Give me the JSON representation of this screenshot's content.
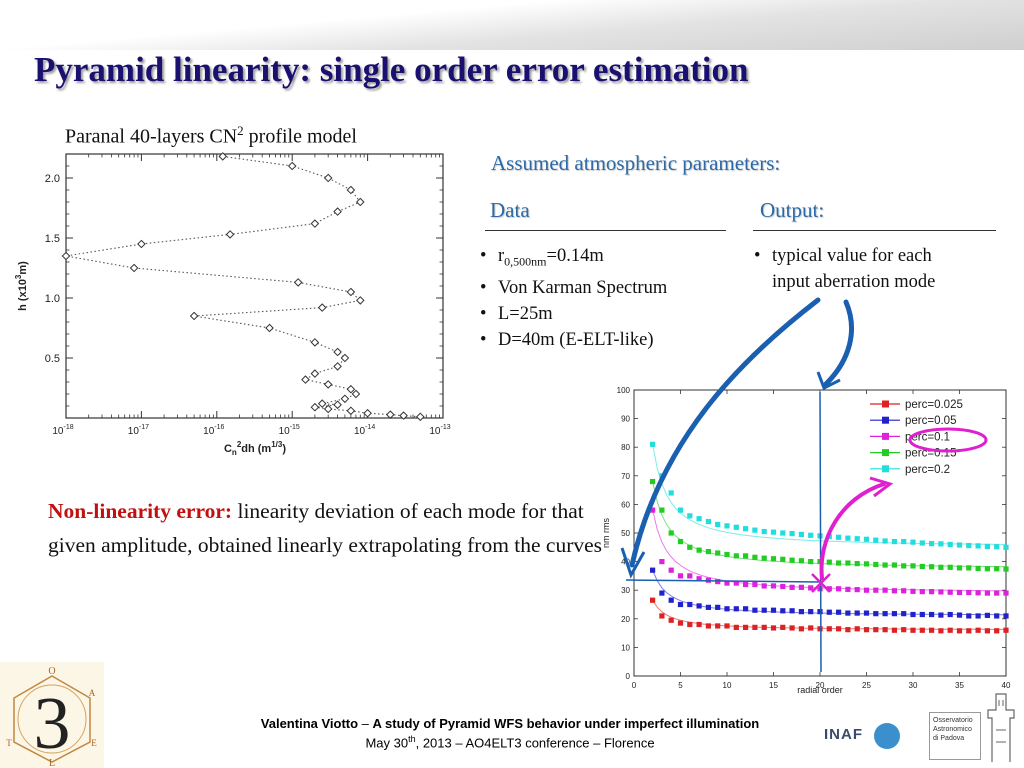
{
  "slide": {
    "title": "Pyramid linearity: single order error estimation",
    "caption_main": "Paranal 40-layers CN",
    "caption_sup": "2",
    "caption_tail": " profile model"
  },
  "atmos": {
    "heading": "Assumed atmospheric parameters:",
    "data_heading": "Data",
    "output_heading": "Output:",
    "r0_prefix": "r",
    "r0_sub": "0,500nm",
    "r0_value": "=0.14m",
    "data_items": [
      "Von Karman Spectrum",
      "L=25m",
      "D=40m (E-ELT-like)"
    ],
    "output_line1": "typical value for each",
    "output_line2": "input aberration mode"
  },
  "nonlinearity": {
    "lead": "Non-linearity error:",
    "text": " linearity deviation of each mode for that given amplitude, obtained linearly extrapolating from the curves"
  },
  "footer": {
    "author": "Valentina Viotto",
    "dash": " – ",
    "talk_title": "A study of Pyramid WFS behavior under imperfect illumination",
    "date_pre": "May 30",
    "date_sup": "th",
    "date_post": ", 2013 – AO4ELT3 conference – Florence"
  },
  "logos": {
    "inaf": "INAF",
    "oapd_lines": [
      "Osservatorio",
      "Astronomico",
      "di Padova"
    ],
    "three": "3",
    "letters": [
      "O",
      "A",
      "E",
      "L",
      "T"
    ]
  },
  "colors": {
    "title": "#1a1070",
    "heading": "#2b6aa8",
    "lead": "#c01010",
    "arrow_blue": "#1a5fb0",
    "arrow_magenta": "#e020d0"
  },
  "chart_data": [
    {
      "type": "line",
      "title": "",
      "xlabel": "C_n^2 dh (m^1/3)",
      "ylabel": "h (x10^3 m)",
      "xscale": "log",
      "xlim": [
        1e-18,
        1e-13
      ],
      "ylim": [
        0,
        2.2
      ],
      "xticks": [
        1e-18,
        1e-17,
        1e-16,
        1e-15,
        1e-14,
        1e-13
      ],
      "xtick_labels": [
        "10",
        "10",
        "10",
        "10",
        "10",
        "10"
      ],
      "xtick_exps": [
        "-18",
        "-17",
        "-16",
        "-15",
        "-14",
        "-13"
      ],
      "yticks": [
        0.5,
        1.0,
        1.5,
        2.0
      ],
      "ytick_labels": [
        "0.5",
        "1.0",
        "1.5",
        "2.0"
      ],
      "ylabel_pre": "h (x10",
      "ylabel_sup": "3",
      "ylabel_post": "m)",
      "xlabel_pre": "C",
      "xlabel_sub": "n",
      "xlabel_sup": "2",
      "xlabel_mid": "dh (m",
      "xlabel_sup2": "1/3",
      "xlabel_post": ")",
      "series": [
        {
          "x": [
            1.2e-16,
            1e-15,
            3e-15,
            6e-15,
            8e-15,
            4e-15,
            2e-15,
            1.5e-16,
            1e-17,
            1e-18,
            8e-18,
            1.2e-15,
            6e-15,
            8e-15,
            2.5e-15,
            5e-17,
            5e-16,
            2e-15,
            4e-15,
            5e-15,
            4e-15,
            2e-15,
            1.5e-15,
            3e-15,
            6e-15,
            7e-15,
            5e-15,
            2.5e-15,
            4e-15,
            2e-15,
            3e-15,
            6e-15,
            1e-14,
            2e-14,
            3e-14,
            5e-14
          ],
          "y": [
            2.18,
            2.1,
            2.0,
            1.9,
            1.8,
            1.72,
            1.62,
            1.53,
            1.45,
            1.35,
            1.25,
            1.13,
            1.05,
            0.98,
            0.92,
            0.85,
            0.75,
            0.63,
            0.55,
            0.5,
            0.43,
            0.37,
            0.32,
            0.28,
            0.24,
            0.2,
            0.16,
            0.12,
            0.11,
            0.09,
            0.075,
            0.06,
            0.04,
            0.028,
            0.02,
            0.01
          ]
        }
      ]
    },
    {
      "type": "line",
      "title": "",
      "xlabel": "radial order",
      "ylabel": "nm rms",
      "xlim": [
        0,
        40
      ],
      "ylim": [
        0,
        100
      ],
      "xticks": [
        0,
        5,
        10,
        15,
        20,
        25,
        30,
        35,
        40
      ],
      "yticks": [
        0,
        10,
        20,
        30,
        40,
        50,
        60,
        70,
        80,
        90,
        100
      ],
      "legend": "top-right",
      "x": [
        2,
        3,
        4,
        5,
        6,
        7,
        8,
        9,
        10,
        11,
        12,
        13,
        14,
        15,
        16,
        17,
        18,
        19,
        20,
        21,
        22,
        23,
        24,
        25,
        26,
        27,
        28,
        29,
        30,
        31,
        32,
        33,
        34,
        35,
        36,
        37,
        38,
        39,
        40
      ],
      "series": [
        {
          "name": "perc=0.025",
          "color": "#dd2222",
          "values": [
            26.5,
            21,
            19.5,
            18.5,
            18,
            18,
            17.5,
            17.5,
            17.5,
            17,
            17,
            17,
            17,
            16.8,
            17,
            16.8,
            16.5,
            16.8,
            16.5,
            16.5,
            16.5,
            16.2,
            16.5,
            16.2,
            16.2,
            16.2,
            16,
            16.2,
            16,
            16,
            16,
            15.8,
            16,
            15.8,
            15.8,
            16,
            15.8,
            15.8,
            16
          ]
        },
        {
          "name": "perc=0.05",
          "color": "#2222cc",
          "values": [
            37,
            29,
            26.5,
            25,
            25,
            24.5,
            24,
            24,
            23.5,
            23.5,
            23.5,
            23,
            23,
            23,
            22.8,
            22.8,
            22.5,
            22.5,
            22.5,
            22.3,
            22.3,
            22,
            22,
            22,
            21.8,
            21.8,
            21.8,
            21.8,
            21.5,
            21.5,
            21.5,
            21.3,
            21.5,
            21.3,
            21,
            21,
            21.2,
            21,
            21
          ]
        },
        {
          "name": "perc=0.1",
          "color": "#dd22dd",
          "values": [
            58,
            40,
            37,
            35,
            35,
            34,
            33.5,
            33,
            32.5,
            32.5,
            32,
            32,
            31.5,
            31.5,
            31.3,
            31,
            31,
            30.8,
            30.5,
            30.5,
            30.5,
            30.3,
            30.2,
            30,
            30,
            30,
            29.8,
            29.8,
            29.6,
            29.5,
            29.5,
            29.4,
            29.3,
            29.2,
            29.2,
            29.1,
            29,
            29,
            29
          ]
        },
        {
          "name": "perc=0.15",
          "color": "#22cc22",
          "values": [
            68,
            58,
            50,
            47,
            45,
            44,
            43.5,
            43,
            42.5,
            42,
            42,
            41.5,
            41.2,
            41,
            40.8,
            40.5,
            40.3,
            40,
            40,
            39.8,
            39.5,
            39.5,
            39.3,
            39.2,
            39,
            38.8,
            38.8,
            38.5,
            38.5,
            38.3,
            38.2,
            38,
            38,
            37.8,
            37.8,
            37.6,
            37.5,
            37.5,
            37.4
          ]
        },
        {
          "name": "perc=0.2",
          "color": "#22dddd",
          "values": [
            81,
            70,
            64,
            58,
            56,
            55,
            54,
            53,
            52.5,
            52,
            51.5,
            51,
            50.5,
            50.3,
            50,
            49.8,
            49.5,
            49.2,
            49,
            48.8,
            48.5,
            48.2,
            48,
            47.8,
            47.5,
            47.2,
            47,
            47,
            46.8,
            46.5,
            46.3,
            46.2,
            46,
            45.8,
            45.6,
            45.5,
            45.3,
            45.2,
            45
          ]
        }
      ]
    }
  ]
}
